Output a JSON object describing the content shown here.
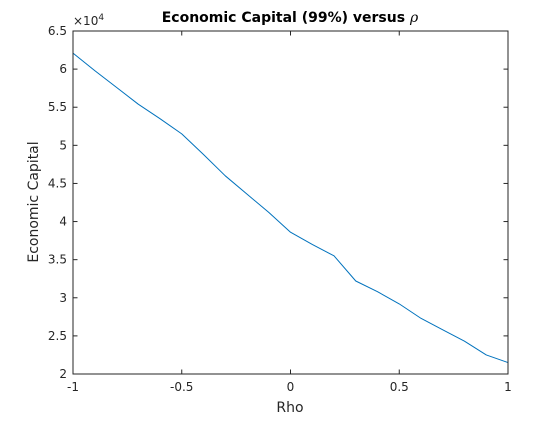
{
  "chart_data": {
    "type": "line",
    "title": "Economic Capital (99%) versus",
    "title_symbol": "ρ",
    "xlabel": "Rho",
    "ylabel": "Economic Capital",
    "xlim": [
      -1,
      1
    ],
    "ylim": [
      20000,
      65000
    ],
    "x_ticks": [
      -1,
      -0.5,
      0,
      0.5,
      1
    ],
    "x_tick_labels": [
      "-1",
      "-0.5",
      "0",
      "0.5",
      "1"
    ],
    "y_ticks": [
      20000,
      25000,
      30000,
      35000,
      40000,
      45000,
      50000,
      55000,
      60000,
      65000
    ],
    "y_tick_labels": [
      "2",
      "2.5",
      "3",
      "3.5",
      "4",
      "4.5",
      "5",
      "5.5",
      "6",
      "6.5"
    ],
    "y_exponent_base": "×10",
    "y_exponent_power": "4",
    "grid": false,
    "box": true,
    "series": [
      {
        "color": "#0072bd",
        "x": [
          -1,
          -0.9,
          -0.8,
          -0.7,
          -0.6,
          -0.5,
          -0.4,
          -0.3,
          -0.2,
          -0.1,
          0,
          0.1,
          0.2,
          0.3,
          0.4,
          0.5,
          0.6,
          0.7,
          0.8,
          0.9,
          1
        ],
        "y": [
          62100,
          59800,
          57600,
          55400,
          53500,
          51500,
          48800,
          46000,
          43600,
          41200,
          38600,
          37000,
          35500,
          32200,
          30800,
          29200,
          27300,
          25800,
          24300,
          22500,
          21500
        ]
      }
    ]
  }
}
